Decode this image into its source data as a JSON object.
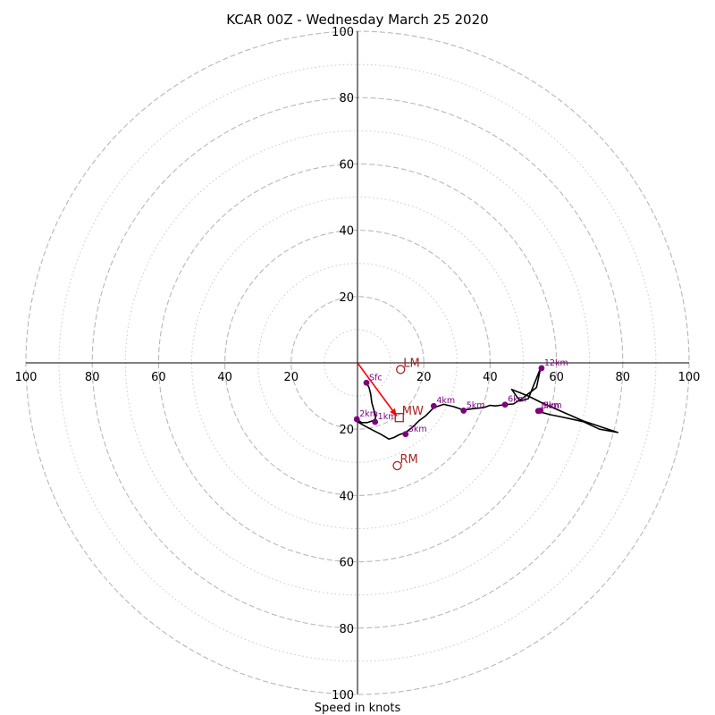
{
  "chart_data": {
    "type": "hodograph",
    "title": "KCAR 00Z - Wednesday March 25 2020",
    "xlabel": "Speed in knots",
    "xlim": [
      -100,
      100
    ],
    "ylim": [
      -100,
      100
    ],
    "rings_major": [
      20,
      40,
      60,
      80,
      100
    ],
    "rings_minor": [
      10,
      30,
      50,
      70,
      90
    ],
    "tick_labels": {
      "left": [
        "100",
        "80",
        "60",
        "40",
        "20"
      ],
      "right": [
        "20",
        "40",
        "60",
        "80",
        "100"
      ],
      "up": [
        "20",
        "40",
        "60",
        "80",
        "100"
      ],
      "down": [
        "20",
        "40",
        "60",
        "80",
        "100"
      ]
    },
    "profile_line": {
      "u": [
        2.7,
        3.5,
        4.0,
        4.3,
        5.0,
        5.5,
        5.3,
        4.5,
        3.0,
        1.2,
        -0.2,
        0.4,
        2.5,
        5.0,
        7.0,
        9.5,
        11.0,
        12.5,
        14.5,
        16.5,
        18.5,
        20.5,
        23.0,
        26.0,
        29.0,
        32.0,
        35.0,
        38.0,
        40.0,
        41.5,
        43.0,
        44.5,
        47.0,
        50.0,
        51.5,
        52.5,
        54.0,
        55.2,
        51.5,
        49.0,
        46.5,
        51.5,
        55.5,
        68.0,
        78.5,
        73.0,
        68.0,
        61.5,
        58.0,
        55.8,
        54.5,
        54.8,
        55.8
      ],
      "v": [
        -6.0,
        -7.5,
        -9.5,
        -12.0,
        -14.5,
        -16.0,
        -17.0,
        -17.5,
        -18.0,
        -18.0,
        -17.0,
        -18.0,
        -19.2,
        -20.5,
        -21.5,
        -23.0,
        -22.5,
        -21.7,
        -21.0,
        -19.5,
        -17.5,
        -16.0,
        -13.5,
        -12.5,
        -13.2,
        -14.2,
        -13.8,
        -13.5,
        -12.8,
        -13.0,
        -12.8,
        -12.6,
        -12.4,
        -10.5,
        -9.3,
        -8.6,
        -7.4,
        -1.6,
        -10.8,
        -11.5,
        -8.0,
        -10.0,
        -12.0,
        -17.5,
        -21.0,
        -20.0,
        -17.7,
        -16.3,
        -15.6,
        -15.0,
        -14.5,
        -14.0,
        -14.2
      ]
    },
    "levels": [
      {
        "label": "Sfc",
        "u": 2.7,
        "v": -6.0
      },
      {
        "label": "1km",
        "u": 5.3,
        "v": -17.8
      },
      {
        "label": "2km",
        "u": -0.2,
        "v": -17.0
      },
      {
        "label": "3km",
        "u": 14.5,
        "v": -21.5
      },
      {
        "label": "4km",
        "u": 23.0,
        "v": -13.0
      },
      {
        "label": "5km",
        "u": 32.0,
        "v": -14.4
      },
      {
        "label": "6km",
        "u": 44.5,
        "v": -12.6
      },
      {
        "label": "8km",
        "u": 54.5,
        "v": -14.5
      },
      {
        "label": "9km",
        "u": 55.2,
        "v": -14.4
      },
      {
        "label": "12km",
        "u": 55.5,
        "v": -1.6
      }
    ],
    "storm_motion": [
      {
        "label": "LM",
        "u": 13.0,
        "v": -2.0,
        "marker": "circle"
      },
      {
        "label": "MW",
        "u": 12.6,
        "v": -16.5,
        "marker": "square"
      },
      {
        "label": "RM",
        "u": 12.0,
        "v": -31.0,
        "marker": "circle"
      }
    ],
    "shear_vector": {
      "u0": 0,
      "v0": 0,
      "u1": 11.8,
      "v1": -16.0
    },
    "colors": {
      "profile": "#000000",
      "level_marker": "#7f007f",
      "storm_motion": "#aa2222",
      "shear_vector": "#ff0000",
      "ring_major": "#b8b8b8",
      "ring_minor": "#c8c8c8",
      "axes": "#000000"
    }
  }
}
